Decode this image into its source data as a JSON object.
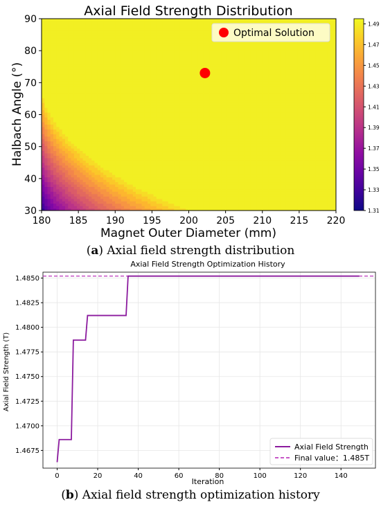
{
  "chart_data": [
    {
      "type": "heatmap",
      "title": "Axial Field Strength Distribution",
      "xlabel": "Magnet Outer Diameter (mm)",
      "ylabel": "Halbach Angle (°)",
      "xlim": [
        180,
        220
      ],
      "ylim": [
        30,
        90
      ],
      "x_ticks": [
        "180",
        "185",
        "190",
        "195",
        "200",
        "205",
        "210",
        "215",
        "220"
      ],
      "y_ticks": [
        "30",
        "40",
        "50",
        "60",
        "70",
        "80",
        "90"
      ],
      "colorbar": {
        "colormap": "plasma",
        "range": [
          1.31,
          1.495
        ],
        "ticks": [
          "1.31",
          "1.33",
          "1.35",
          "1.37",
          "1.39",
          "1.41",
          "1.43",
          "1.45",
          "1.47",
          "1.49"
        ]
      },
      "highlight_point": {
        "name": "Optimal Solution",
        "x": 202.2,
        "y": 73,
        "color": "#ff0000"
      },
      "legend_position": "top-right",
      "caption_label": "a",
      "caption_text": "Axial field strength distribution"
    },
    {
      "type": "line",
      "title": "Axial Field Strength Optimization History",
      "xlabel": "Iteration",
      "ylabel": "Axial Field Strength (T)",
      "xlim": [
        -7,
        157
      ],
      "ylim": [
        1.4657,
        1.4856
      ],
      "x_ticks": [
        "0",
        "20",
        "40",
        "60",
        "80",
        "100",
        "120",
        "140"
      ],
      "y_ticks": [
        "1.4675",
        "1.4700",
        "1.4725",
        "1.4750",
        "1.4775",
        "1.4800",
        "1.4825",
        "1.4850"
      ],
      "grid": true,
      "legend_position": "bottom-right",
      "series": [
        {
          "name": "Axial Field Strength",
          "color": "#8b1a9e",
          "x": [
            0,
            1,
            1,
            7,
            7,
            8,
            8,
            14,
            14,
            15,
            15,
            34,
            34,
            35,
            35,
            149
          ],
          "y": [
            1.4663,
            1.4686,
            1.4686,
            1.4686,
            1.4686,
            1.4787,
            1.4787,
            1.4787,
            1.4787,
            1.4812,
            1.4812,
            1.4812,
            1.4812,
            1.4852,
            1.4852,
            1.4852
          ]
        }
      ],
      "reference_line": {
        "name": "Final value：1.485T",
        "y": 1.4852,
        "color": "#b31fb3"
      },
      "caption_label": "b",
      "caption_text": "Axial field strength optimization history"
    }
  ]
}
